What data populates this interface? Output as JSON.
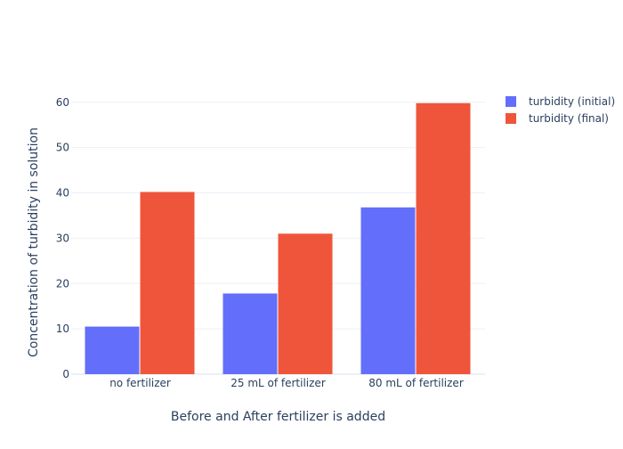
{
  "chart_data": {
    "type": "bar",
    "title": "",
    "xlabel": "Before and After fertilizer is added",
    "ylabel": "Concentration of turbidity in solution",
    "categories": [
      "no fertilizer",
      "25 mL of fertilizer",
      "80 mL of fertilizer"
    ],
    "series": [
      {
        "name": "turbidity (initial)",
        "color": "#636efa",
        "values": [
          10.5,
          17.8,
          36.8
        ]
      },
      {
        "name": "turbidity (final)",
        "color": "#ef553b",
        "values": [
          40.2,
          31.0,
          59.8
        ]
      }
    ],
    "ylim": [
      0,
      62.9
    ],
    "yticks": [
      0,
      10,
      20,
      30,
      40,
      50,
      60
    ],
    "grid": true,
    "legend_position": "top-right"
  }
}
